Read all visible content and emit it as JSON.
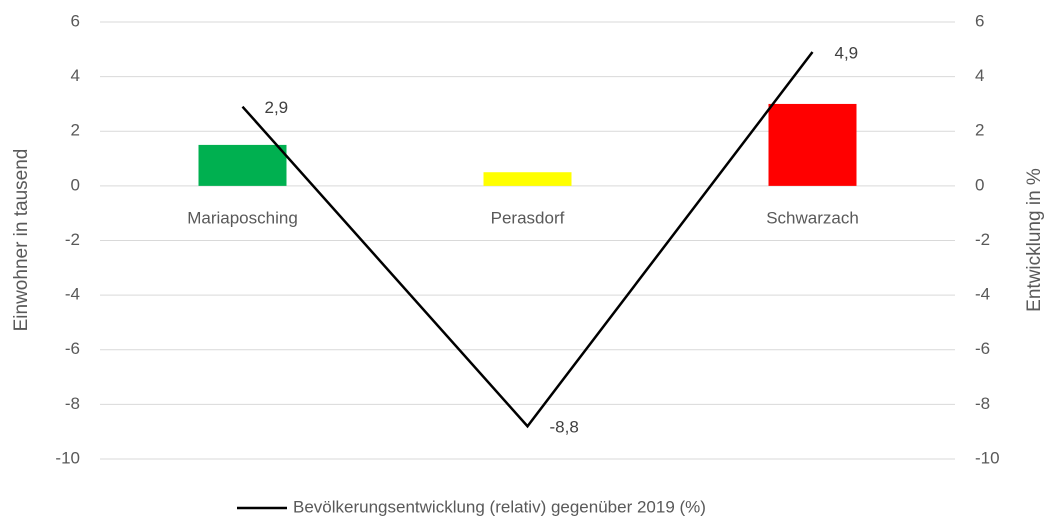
{
  "chart_data": {
    "type": "bar-line",
    "categories": [
      "Mariaposching",
      "Perasdorf",
      "Schwarzach"
    ],
    "series": [
      {
        "type": "bar",
        "colors": [
          "#00b050",
          "#ffff00",
          "#ff0000"
        ],
        "values": [
          1.5,
          0.5,
          3.0
        ]
      },
      {
        "type": "line",
        "name": "Bevölkerungsentwicklung (relativ) gegenüber 2019 (%)",
        "color": "#000000",
        "axis": "y2",
        "values": [
          2.9,
          -8.8,
          4.9
        ],
        "value_labels": [
          "2,9",
          "-8,8",
          "4,9"
        ]
      }
    ],
    "ylabel": "Einwohner in tausend",
    "y2label": "Entwicklung in %",
    "ylim": [
      -10,
      6
    ],
    "yticks": [
      -10,
      -8,
      -6,
      -4,
      -2,
      0,
      2,
      4,
      6
    ],
    "y2lim": [
      -10,
      6
    ],
    "y2ticks": [
      -10,
      -8,
      -6,
      -4,
      -2,
      0,
      2,
      4,
      6
    ],
    "grid": true,
    "legend": "bottom"
  }
}
